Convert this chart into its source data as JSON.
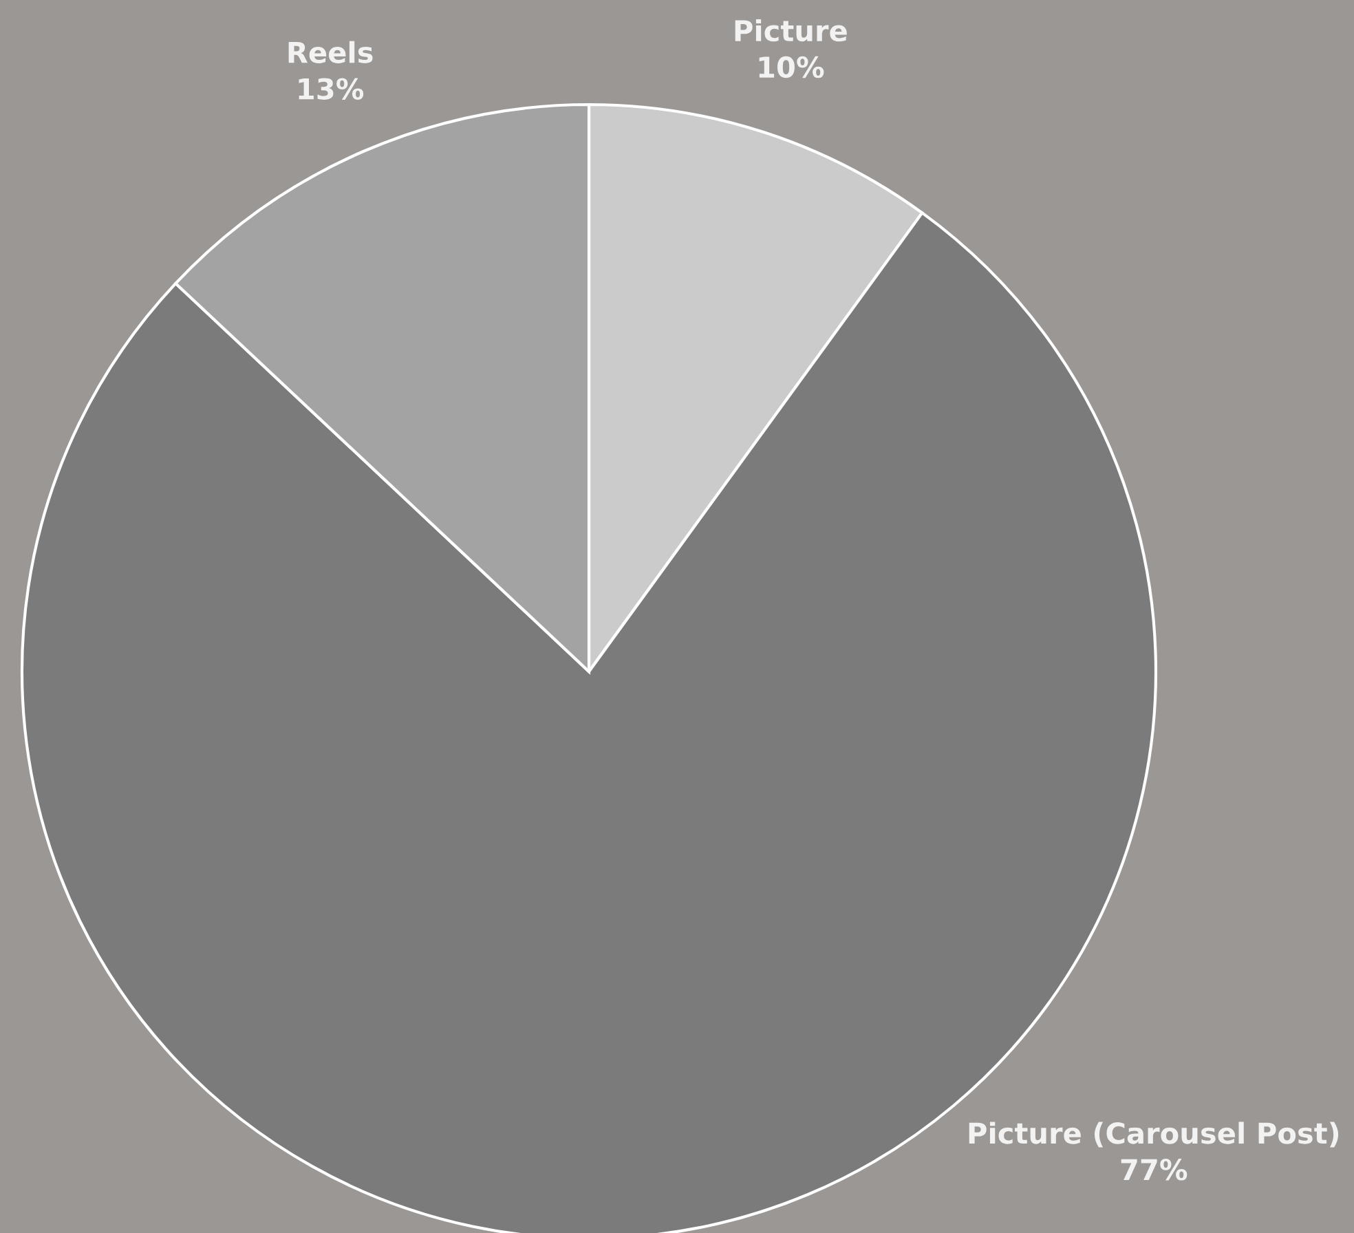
{
  "chart_data": {
    "type": "pie",
    "categories": [
      "Picture",
      "Picture (Carousel Post)",
      "Reels"
    ],
    "values": [
      10,
      77,
      13
    ],
    "colors": [
      "#cbcbcb",
      "#7b7b7b",
      "#a3a3a3"
    ],
    "value_labels": [
      "10%",
      "77%",
      "13%"
    ]
  }
}
